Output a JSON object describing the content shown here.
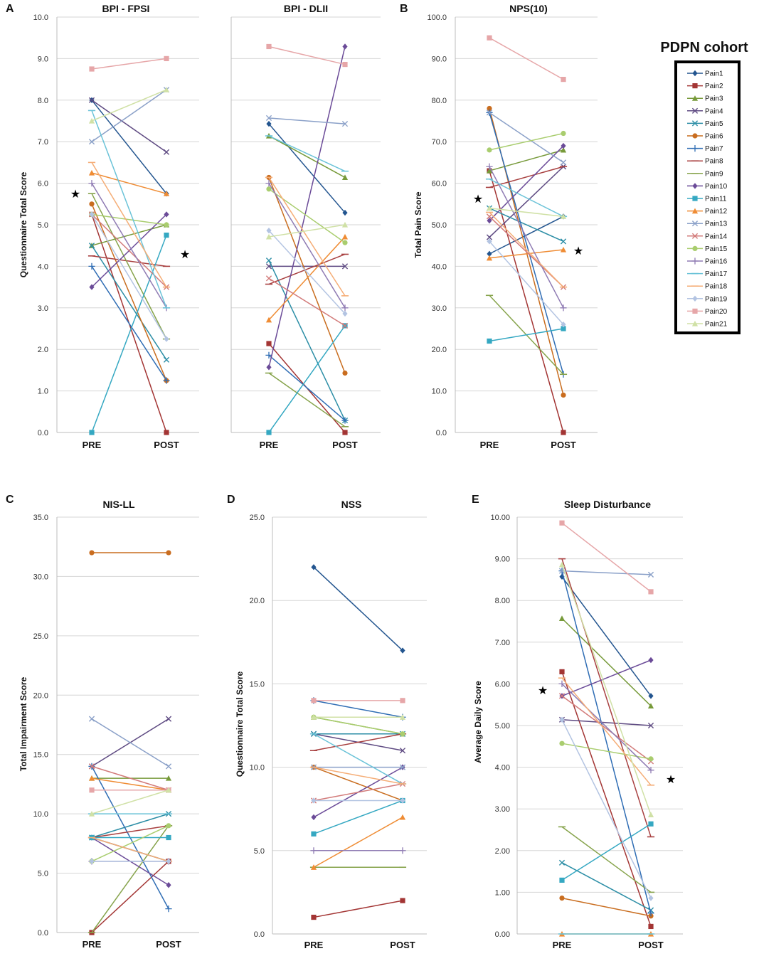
{
  "legend": {
    "title": "PDPN cohort",
    "items": [
      "Pain1",
      "Pain2",
      "Pain3",
      "Pain4",
      "Pain5",
      "Pain6",
      "Pain7",
      "Pain8",
      "Pain9",
      "Pain10",
      "Pain11",
      "Pain12",
      "Pain13",
      "Pain14",
      "Pain15",
      "Pain16",
      "Pain17",
      "Pain18",
      "Pain19",
      "Pain20",
      "Pain21"
    ]
  },
  "series_styles": [
    {
      "color": "#23558f",
      "marker": "diamond"
    },
    {
      "color": "#a33534",
      "marker": "square"
    },
    {
      "color": "#779a3a",
      "marker": "triangle"
    },
    {
      "color": "#5e4a82",
      "marker": "x"
    },
    {
      "color": "#2c8ea6",
      "marker": "x"
    },
    {
      "color": "#c96d1f",
      "marker": "circle"
    },
    {
      "color": "#2f6db4",
      "marker": "plus"
    },
    {
      "color": "#a84040",
      "marker": "dash"
    },
    {
      "color": "#86a34b",
      "marker": "dash"
    },
    {
      "color": "#6b4b98",
      "marker": "diamond"
    },
    {
      "color": "#35a8c2",
      "marker": "square"
    },
    {
      "color": "#ef8c34",
      "marker": "triangle"
    },
    {
      "color": "#8aa0c8",
      "marker": "x"
    },
    {
      "color": "#d27a79",
      "marker": "x"
    },
    {
      "color": "#a9cd6e",
      "marker": "circle"
    },
    {
      "color": "#8f7bb3",
      "marker": "plus"
    },
    {
      "color": "#6bc3d8",
      "marker": "dash"
    },
    {
      "color": "#f5ad76",
      "marker": "dash"
    },
    {
      "color": "#b3c4e2",
      "marker": "diamond"
    },
    {
      "color": "#e6a6a8",
      "marker": "square"
    },
    {
      "color": "#d0e1a6",
      "marker": "triangle"
    }
  ],
  "chart_data": [
    {
      "type": "line",
      "panel": "A",
      "title": "BPI - FPSI",
      "ylabel": "Questionnaire Total Score",
      "categories": [
        "PRE",
        "POST"
      ],
      "ylim": [
        0,
        10
      ],
      "ticks": [
        "0.0",
        "1.0",
        "2.0",
        "3.0",
        "4.0",
        "5.0",
        "6.0",
        "7.0",
        "8.0",
        "9.0",
        "10.0"
      ],
      "star_pre": true,
      "star_post": true,
      "series": [
        {
          "name": "Pain1",
          "values": [
            8.0,
            5.75
          ]
        },
        {
          "name": "Pain2",
          "values": [
            5.25,
            0.0
          ]
        },
        {
          "name": "Pain3",
          "values": [
            4.5,
            5.0
          ]
        },
        {
          "name": "Pain4",
          "values": [
            8.0,
            6.75
          ]
        },
        {
          "name": "Pain5",
          "values": [
            4.5,
            1.75
          ]
        },
        {
          "name": "Pain6",
          "values": [
            5.5,
            1.25
          ]
        },
        {
          "name": "Pain7",
          "values": [
            4.0,
            1.25
          ]
        },
        {
          "name": "Pain8",
          "values": [
            4.25,
            4.0
          ]
        },
        {
          "name": "Pain9",
          "values": [
            5.75,
            2.25
          ]
        },
        {
          "name": "Pain10",
          "values": [
            3.5,
            5.25
          ]
        },
        {
          "name": "Pain11",
          "values": [
            0.0,
            4.75
          ]
        },
        {
          "name": "Pain12",
          "values": [
            6.25,
            5.75
          ]
        },
        {
          "name": "Pain13",
          "values": [
            7.0,
            8.25
          ]
        },
        {
          "name": "Pain14",
          "values": [
            5.25,
            3.5
          ]
        },
        {
          "name": "Pain15",
          "values": [
            5.25,
            5.0
          ]
        },
        {
          "name": "Pain16",
          "values": [
            6.0,
            3.0
          ]
        },
        {
          "name": "Pain17",
          "values": [
            7.75,
            3.0
          ]
        },
        {
          "name": "Pain18",
          "values": [
            6.5,
            3.5
          ]
        },
        {
          "name": "Pain19",
          "values": [
            5.25,
            2.25
          ]
        },
        {
          "name": "Pain20",
          "values": [
            8.75,
            9.0
          ]
        },
        {
          "name": "Pain21",
          "values": [
            7.5,
            8.25
          ]
        }
      ]
    },
    {
      "type": "line",
      "panel": "",
      "title": "BPI - DLII",
      "ylabel": "",
      "categories": [
        "PRE",
        "POST"
      ],
      "ylim": [
        0,
        10
      ],
      "ticks": [],
      "star_pre": false,
      "star_post": false,
      "series": [
        {
          "name": "Pain1",
          "values": [
            7.43,
            5.29
          ]
        },
        {
          "name": "Pain2",
          "values": [
            2.14,
            0.0
          ]
        },
        {
          "name": "Pain3",
          "values": [
            7.14,
            6.14
          ]
        },
        {
          "name": "Pain4",
          "values": [
            4.0,
            4.0
          ]
        },
        {
          "name": "Pain5",
          "values": [
            4.14,
            0.29
          ]
        },
        {
          "name": "Pain6",
          "values": [
            6.14,
            1.43
          ]
        },
        {
          "name": "Pain7",
          "values": [
            1.86,
            0.29
          ]
        },
        {
          "name": "Pain8",
          "values": [
            3.57,
            4.29
          ]
        },
        {
          "name": "Pain9",
          "values": [
            1.43,
            0.14
          ]
        },
        {
          "name": "Pain10",
          "values": [
            1.57,
            9.29
          ]
        },
        {
          "name": "Pain11",
          "values": [
            0.0,
            2.57
          ]
        },
        {
          "name": "Pain12",
          "values": [
            2.71,
            4.71
          ]
        },
        {
          "name": "Pain13",
          "values": [
            7.57,
            7.43
          ]
        },
        {
          "name": "Pain14",
          "values": [
            3.71,
            2.57
          ]
        },
        {
          "name": "Pain15",
          "values": [
            5.86,
            4.57
          ]
        },
        {
          "name": "Pain16",
          "values": [
            6.0,
            3.0
          ]
        },
        {
          "name": "Pain17",
          "values": [
            7.14,
            6.29
          ]
        },
        {
          "name": "Pain18",
          "values": [
            6.14,
            3.29
          ]
        },
        {
          "name": "Pain19",
          "values": [
            4.86,
            2.86
          ]
        },
        {
          "name": "Pain20",
          "values": [
            9.29,
            8.86
          ]
        },
        {
          "name": "Pain21",
          "values": [
            4.71,
            5.0
          ]
        }
      ]
    },
    {
      "type": "line",
      "panel": "B",
      "title": "NPS(10)",
      "ylabel": "Total Pain Score",
      "categories": [
        "PRE",
        "POST"
      ],
      "ylim": [
        0,
        100
      ],
      "ticks": [
        "0.0",
        "10.0",
        "20.0",
        "30.0",
        "40.0",
        "50.0",
        "60.0",
        "70.0",
        "80.0",
        "90.0",
        "100.0"
      ],
      "star_pre": true,
      "star_post": true,
      "series": [
        {
          "name": "Pain1",
          "values": [
            43,
            52
          ]
        },
        {
          "name": "Pain2",
          "values": [
            63,
            0
          ]
        },
        {
          "name": "Pain3",
          "values": [
            63,
            68
          ]
        },
        {
          "name": "Pain4",
          "values": [
            47,
            64
          ]
        },
        {
          "name": "Pain5",
          "values": [
            54,
            46
          ]
        },
        {
          "name": "Pain6",
          "values": [
            78,
            9
          ]
        },
        {
          "name": "Pain7",
          "values": [
            77,
            14
          ]
        },
        {
          "name": "Pain8",
          "values": [
            59,
            64
          ]
        },
        {
          "name": "Pain9",
          "values": [
            33,
            14
          ]
        },
        {
          "name": "Pain10",
          "values": [
            51,
            69
          ]
        },
        {
          "name": "Pain11",
          "values": [
            22,
            25
          ]
        },
        {
          "name": "Pain12",
          "values": [
            42,
            44
          ]
        },
        {
          "name": "Pain13",
          "values": [
            77,
            65
          ]
        },
        {
          "name": "Pain14",
          "values": [
            52,
            35
          ]
        },
        {
          "name": "Pain15",
          "values": [
            68,
            72
          ]
        },
        {
          "name": "Pain16",
          "values": [
            64,
            30
          ]
        },
        {
          "name": "Pain17",
          "values": [
            61,
            52
          ]
        },
        {
          "name": "Pain18",
          "values": [
            53,
            35
          ]
        },
        {
          "name": "Pain19",
          "values": [
            46,
            26
          ]
        },
        {
          "name": "Pain20",
          "values": [
            95,
            85
          ]
        },
        {
          "name": "Pain21",
          "values": [
            54,
            52
          ]
        }
      ]
    },
    {
      "type": "line",
      "panel": "C",
      "title": "NIS-LL",
      "ylabel": "Total Impairment Score",
      "categories": [
        "PRE",
        "POST"
      ],
      "ylim": [
        0,
        35
      ],
      "ticks": [
        "0.0",
        "5.0",
        "10.0",
        "15.0",
        "20.0",
        "25.0",
        "30.0",
        "35.0"
      ],
      "star_pre": false,
      "star_post": false,
      "series": [
        {
          "name": "Pain1",
          "values": [
            8,
            6
          ]
        },
        {
          "name": "Pain2",
          "values": [
            0,
            6
          ]
        },
        {
          "name": "Pain3",
          "values": [
            13,
            13
          ]
        },
        {
          "name": "Pain4",
          "values": [
            14,
            18
          ]
        },
        {
          "name": "Pain5",
          "values": [
            8,
            10
          ]
        },
        {
          "name": "Pain6",
          "values": [
            32,
            32
          ]
        },
        {
          "name": "Pain7",
          "values": [
            14,
            2
          ]
        },
        {
          "name": "Pain8",
          "values": [
            8,
            9
          ]
        },
        {
          "name": "Pain9",
          "values": [
            0,
            9
          ]
        },
        {
          "name": "Pain10",
          "values": [
            8,
            4
          ]
        },
        {
          "name": "Pain11",
          "values": [
            8,
            8
          ]
        },
        {
          "name": "Pain12",
          "values": [
            13,
            12
          ]
        },
        {
          "name": "Pain13",
          "values": [
            18,
            14
          ]
        },
        {
          "name": "Pain14",
          "values": [
            14,
            12
          ]
        },
        {
          "name": "Pain15",
          "values": [
            6,
            9
          ]
        },
        {
          "name": "Pain16",
          "values": [
            6,
            6
          ]
        },
        {
          "name": "Pain17",
          "values": [
            10,
            10
          ]
        },
        {
          "name": "Pain18",
          "values": [
            8,
            6
          ]
        },
        {
          "name": "Pain19",
          "values": [
            6,
            6
          ]
        },
        {
          "name": "Pain20",
          "values": [
            12,
            12
          ]
        },
        {
          "name": "Pain21",
          "values": [
            10,
            12
          ]
        }
      ]
    },
    {
      "type": "line",
      "panel": "D",
      "title": "NSS",
      "ylabel": "Questionnaire Total Score",
      "categories": [
        "PRE",
        "POST"
      ],
      "ylim": [
        0,
        25
      ],
      "ticks": [
        "0.0",
        "5.0",
        "10.0",
        "15.0",
        "20.0",
        "25.0"
      ],
      "star_pre": false,
      "star_post": false,
      "series": [
        {
          "name": "Pain1",
          "values": [
            22,
            17
          ]
        },
        {
          "name": "Pain2",
          "values": [
            1,
            2
          ]
        },
        {
          "name": "Pain3",
          "values": [
            13,
            12
          ]
        },
        {
          "name": "Pain4",
          "values": [
            12,
            11
          ]
        },
        {
          "name": "Pain5",
          "values": [
            12,
            12
          ]
        },
        {
          "name": "Pain6",
          "values": [
            10,
            8
          ]
        },
        {
          "name": "Pain7",
          "values": [
            14,
            13
          ]
        },
        {
          "name": "Pain8",
          "values": [
            11,
            12
          ]
        },
        {
          "name": "Pain9",
          "values": [
            4,
            4
          ]
        },
        {
          "name": "Pain10",
          "values": [
            7,
            10
          ]
        },
        {
          "name": "Pain11",
          "values": [
            6,
            8
          ]
        },
        {
          "name": "Pain12",
          "values": [
            4,
            7
          ]
        },
        {
          "name": "Pain13",
          "values": [
            10,
            10
          ]
        },
        {
          "name": "Pain14",
          "values": [
            8,
            9
          ]
        },
        {
          "name": "Pain15",
          "values": [
            13,
            12
          ]
        },
        {
          "name": "Pain16",
          "values": [
            5,
            5
          ]
        },
        {
          "name": "Pain17",
          "values": [
            12,
            9
          ]
        },
        {
          "name": "Pain18",
          "values": [
            10,
            9
          ]
        },
        {
          "name": "Pain19",
          "values": [
            8,
            8
          ]
        },
        {
          "name": "Pain20",
          "values": [
            14,
            14
          ]
        },
        {
          "name": "Pain21",
          "values": [
            13,
            13
          ]
        }
      ]
    },
    {
      "type": "line",
      "panel": "E",
      "title": "Sleep Disturbance",
      "ylabel": "Average Daily Score",
      "categories": [
        "PRE",
        "POST"
      ],
      "ylim": [
        0,
        10
      ],
      "ticks": [
        "0.00",
        "1.00",
        "2.00",
        "3.00",
        "4.00",
        "5.00",
        "6.00",
        "7.00",
        "8.00",
        "9.00",
        "10.00"
      ],
      "star_pre": true,
      "star_post": true,
      "series": [
        {
          "name": "Pain1",
          "values": [
            8.57,
            5.71
          ]
        },
        {
          "name": "Pain2",
          "values": [
            6.29,
            0.18
          ]
        },
        {
          "name": "Pain3",
          "values": [
            7.57,
            5.47
          ]
        },
        {
          "name": "Pain4",
          "values": [
            5.14,
            5.0
          ]
        },
        {
          "name": "Pain5",
          "values": [
            1.71,
            0.57
          ]
        },
        {
          "name": "Pain6",
          "values": [
            0.86,
            0.43
          ]
        },
        {
          "name": "Pain7",
          "values": [
            8.71,
            0.5
          ]
        },
        {
          "name": "Pain8",
          "values": [
            9.0,
            2.33
          ]
        },
        {
          "name": "Pain9",
          "values": [
            2.57,
            1.0
          ]
        },
        {
          "name": "Pain10",
          "values": [
            5.71,
            6.57
          ]
        },
        {
          "name": "Pain11",
          "values": [
            1.29,
            2.64
          ]
        },
        {
          "name": "Pain12",
          "values": [
            0.0,
            0.0
          ]
        },
        {
          "name": "Pain13",
          "values": [
            8.71,
            8.62
          ]
        },
        {
          "name": "Pain14",
          "values": [
            5.71,
            4.14
          ]
        },
        {
          "name": "Pain15",
          "values": [
            4.57,
            4.2
          ]
        },
        {
          "name": "Pain16",
          "values": [
            6.0,
            3.93
          ]
        },
        {
          "name": "Pain17",
          "values": [
            0.0,
            0.0
          ]
        },
        {
          "name": "Pain18",
          "values": [
            6.14,
            3.57
          ]
        },
        {
          "name": "Pain19",
          "values": [
            5.14,
            0.86
          ]
        },
        {
          "name": "Pain20",
          "values": [
            9.86,
            8.21
          ]
        },
        {
          "name": "Pain21",
          "values": [
            8.86,
            2.86
          ]
        }
      ]
    }
  ]
}
